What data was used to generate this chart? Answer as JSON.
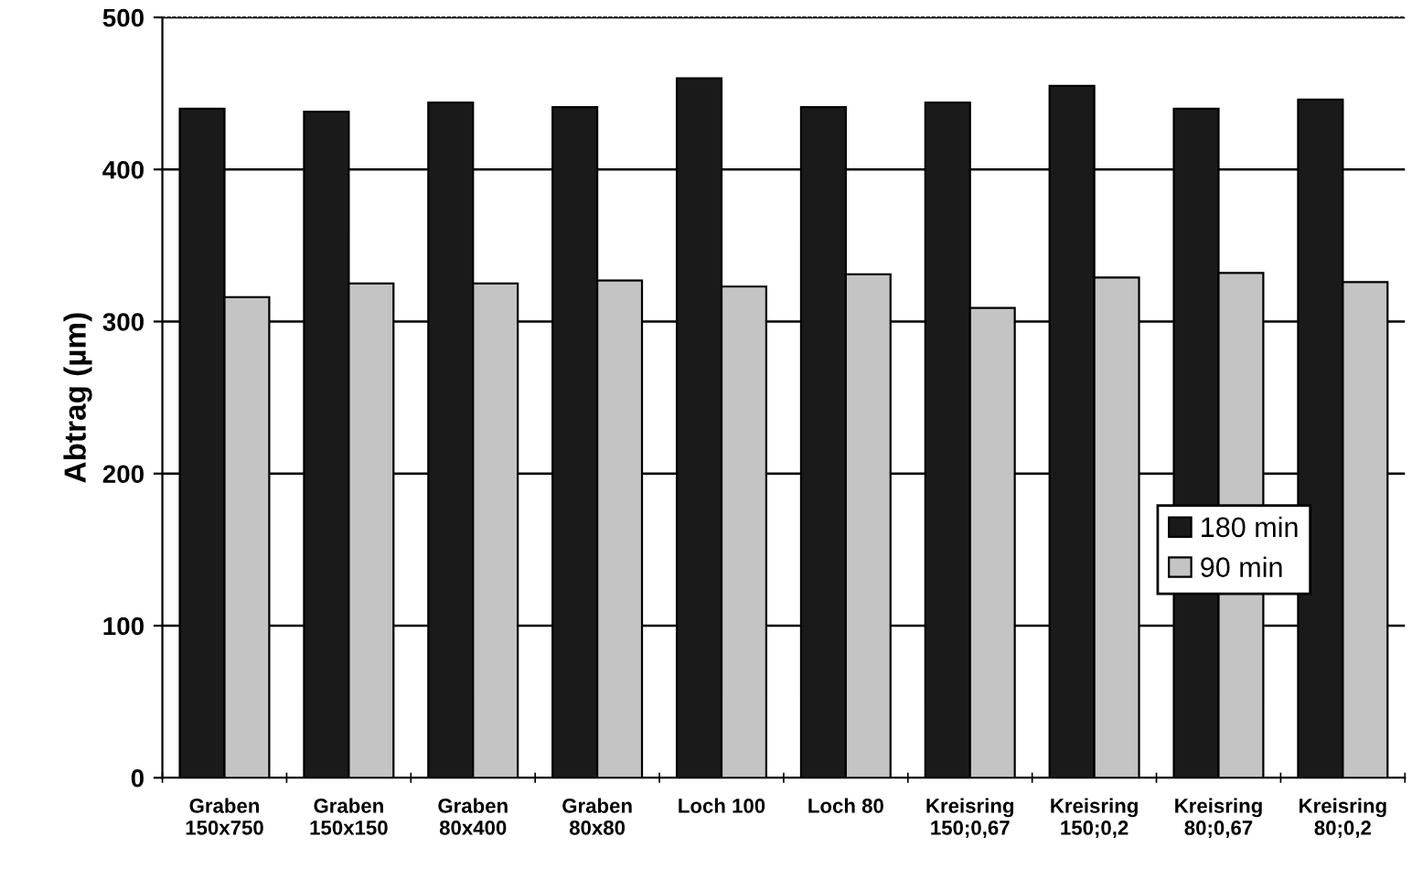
{
  "chart_data": {
    "type": "bar",
    "ylabel": "Abtrag (µm)",
    "categories": [
      "Graben\n150x750",
      "Graben\n150x150",
      "Graben\n80x400",
      "Graben\n80x80",
      "Loch 100",
      "Loch 80",
      "Kreisring\n150;0,67",
      "Kreisring\n150;0,2",
      "Kreisring\n80;0,67",
      "Kreisring\n80;0,2"
    ],
    "series": [
      {
        "name": "180 min",
        "color": "#1a1a1a",
        "values": [
          440,
          438,
          444,
          441,
          460,
          441,
          444,
          455,
          440,
          446
        ]
      },
      {
        "name": "90 min",
        "color": "#c4c4c4",
        "values": [
          316,
          325,
          325,
          327,
          323,
          331,
          309,
          329,
          332,
          326
        ]
      }
    ],
    "ylim": [
      0,
      500
    ],
    "yticks": [
      0,
      100,
      200,
      300,
      400,
      500
    ],
    "grid": "y",
    "legend": "right"
  }
}
